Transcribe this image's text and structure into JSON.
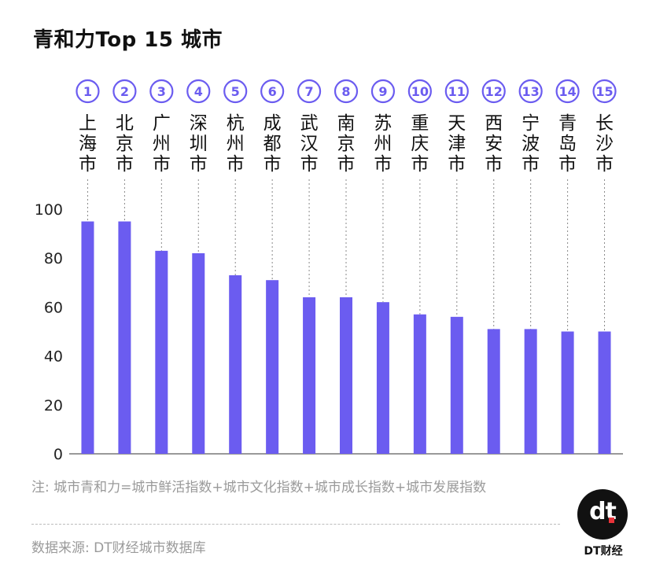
{
  "chart_data": {
    "type": "bar",
    "title": "青和力Top 15 城市",
    "categories": [
      "上海市",
      "北京市",
      "广州市",
      "深圳市",
      "杭州市",
      "成都市",
      "武汉市",
      "南京市",
      "苏州市",
      "重庆市",
      "天津市",
      "西安市",
      "宁波市",
      "青岛市",
      "长沙市"
    ],
    "ranks": [
      "①",
      "②",
      "③",
      "④",
      "⑤",
      "⑥",
      "⑦",
      "⑧",
      "⑨",
      "⑩",
      "⑪",
      "⑫",
      "⑬",
      "⑭",
      "⑮"
    ],
    "values": [
      95,
      95,
      83,
      82,
      73,
      71,
      64,
      64,
      62,
      57,
      56,
      51,
      51,
      50,
      50
    ],
    "ylim": [
      0,
      100
    ],
    "yticks": [
      0,
      20,
      40,
      60,
      80,
      100
    ],
    "xlabel": "",
    "ylabel": "",
    "grid": false,
    "bar_color": "#6b5cf0",
    "rank_color": "#6b5cf0"
  },
  "footer": {
    "note": "注: 城市青和力=城市鲜活指数+城市文化指数+城市成长指数+城市发展指数",
    "source": "数据来源: DT财经城市数据库"
  },
  "logo": {
    "mark": "dt",
    "brand": "DT财经"
  }
}
